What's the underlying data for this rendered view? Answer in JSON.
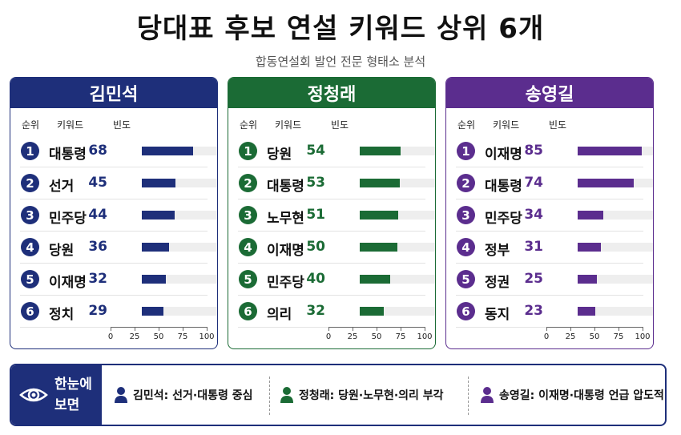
{
  "title": "당대표 후보 연설 키워드 상위 6개",
  "subtitle": "합동연설회 발언 전문 형태소 분석",
  "chart_data": [
    {
      "type": "bar",
      "title": "김민석",
      "color": "#1e2f7a",
      "columns": {
        "rank": "순위",
        "keyword": "키워드",
        "freq": "빈도"
      },
      "ranks": [
        "1",
        "2",
        "3",
        "4",
        "5",
        "6"
      ],
      "categories": [
        "대통령",
        "선거",
        "민주당",
        "당원",
        "이재명",
        "정치"
      ],
      "values": [
        68,
        45,
        44,
        36,
        32,
        29
      ],
      "xlim": [
        0,
        100
      ],
      "xticks": [
        "0",
        "25",
        "50",
        "75",
        "100"
      ]
    },
    {
      "type": "bar",
      "title": "정청래",
      "color": "#1b6b35",
      "columns": {
        "rank": "순위",
        "keyword": "키워드",
        "freq": "빈도"
      },
      "ranks": [
        "1",
        "2",
        "3",
        "4",
        "5",
        "6"
      ],
      "categories": [
        "당원",
        "대통령",
        "노무현",
        "이재명",
        "민주당",
        "의리"
      ],
      "values": [
        54,
        53,
        51,
        50,
        40,
        32
      ],
      "xlim": [
        0,
        100
      ],
      "xticks": [
        "0",
        "25",
        "50",
        "75",
        "100"
      ]
    },
    {
      "type": "bar",
      "title": "송영길",
      "color": "#5b2d8e",
      "columns": {
        "rank": "순위",
        "keyword": "키워드",
        "freq": "빈도"
      },
      "ranks": [
        "1",
        "2",
        "3",
        "4",
        "5",
        "6"
      ],
      "categories": [
        "이재명",
        "대통령",
        "민주당",
        "정부",
        "정권",
        "동지"
      ],
      "values": [
        85,
        74,
        34,
        31,
        25,
        23
      ],
      "xlim": [
        0,
        100
      ],
      "xticks": [
        "0",
        "25",
        "50",
        "75",
        "100"
      ]
    }
  ],
  "summary": {
    "label_line1": "한눈에",
    "label_line2": "보면",
    "icon": "eye-icon",
    "items": [
      {
        "text": "김민석: 선거·대통령 중심",
        "color": "#1e2f7a",
        "icon": "person-icon"
      },
      {
        "text": "정청래: 당원·노무현·의리 부각",
        "color": "#1b6b35",
        "icon": "person-icon"
      },
      {
        "text": "송영길: 이재명·대통령 언급 압도적",
        "color": "#5b2d8e",
        "icon": "person-icon"
      }
    ]
  }
}
